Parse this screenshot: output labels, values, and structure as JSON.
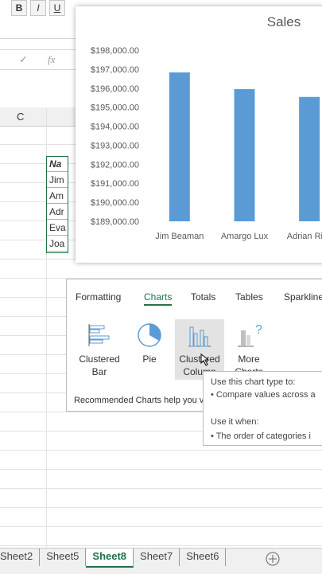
{
  "ribbon": {
    "buttons": [
      "B",
      "I",
      "U"
    ]
  },
  "formula_bar": {
    "icons": [
      "✓",
      "fx"
    ]
  },
  "sheet": {
    "column_header": "C",
    "table_cells": [
      "Na",
      "Jim",
      "Am",
      "Adr",
      "Eva",
      "Joa"
    ]
  },
  "chart_data": {
    "type": "bar",
    "title": "Sales",
    "categories": [
      "Jim Beaman",
      "Amargo Lux",
      "Adrian Riefl"
    ],
    "values": [
      196830,
      195950,
      195540
    ],
    "color": "#5b9bd5",
    "ylim": [
      189000,
      198000
    ],
    "yticks": [
      {
        "value": 189000,
        "label": "$189,000.00"
      },
      {
        "value": 190000,
        "label": "$190,000.00"
      },
      {
        "value": 191000,
        "label": "$191,000.00"
      },
      {
        "value": 192000,
        "label": "$192,000.00"
      },
      {
        "value": 193000,
        "label": "$193,000.00"
      },
      {
        "value": 194000,
        "label": "$194,000.00"
      },
      {
        "value": 195000,
        "label": "$195,000.00"
      },
      {
        "value": 196000,
        "label": "$196,000.00"
      },
      {
        "value": 197000,
        "label": "$197,000.00"
      },
      {
        "value": 198000,
        "label": "$198,000.00"
      }
    ],
    "grid": false
  },
  "quick_analysis": {
    "tabs": [
      "Formatting",
      "Charts",
      "Totals",
      "Tables",
      "Sparklines"
    ],
    "options": [
      "Clustered Bar",
      "Pie",
      "Clustered Column",
      "More Charts"
    ],
    "footer": "Recommended Charts help you vi"
  },
  "tooltip": {
    "lines": [
      "Use this chart type to:",
      "• Compare values across a",
      "Use it when:",
      "• The order of categories i"
    ]
  },
  "sheet_tabs": {
    "tabs": [
      "Sheet2",
      "Sheet5",
      "Sheet8",
      "Sheet7",
      "Sheet6"
    ],
    "active": 2
  }
}
